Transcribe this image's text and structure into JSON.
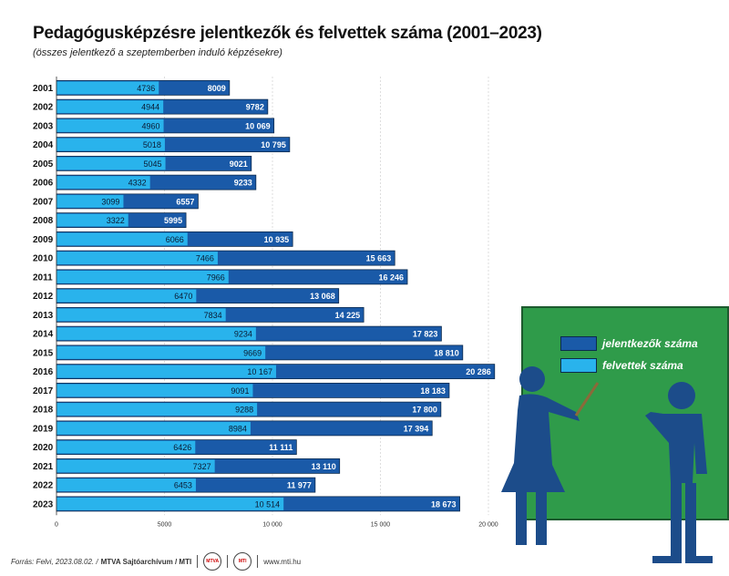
{
  "title": "Pedagógusképzésre jelentkezők és felvettek száma (2001–2023)",
  "subtitle": "(összes jelentkező a szeptemberben induló képzésekre)",
  "colors": {
    "applicants": "#1a5aa8",
    "admitted": "#29b3ec",
    "outline": "#0c2a4d",
    "board": "#2f9b4a"
  },
  "legend": {
    "applicants": "jelentkezők száma",
    "admitted": "felvettek száma"
  },
  "footer": {
    "source": "Forrás: Felvi, 2023.08.02. /",
    "agency": "MTVA Sajtóarchívum / MTI",
    "logo1": "MTVA",
    "logo2": "MTI",
    "web": "www.mti.hu"
  },
  "chart_data": {
    "type": "bar",
    "orientation": "horizontal",
    "categories": [
      "2001",
      "2002",
      "2003",
      "2004",
      "2005",
      "2006",
      "2007",
      "2008",
      "2009",
      "2010",
      "2011",
      "2012",
      "2013",
      "2014",
      "2015",
      "2016",
      "2017",
      "2018",
      "2019",
      "2020",
      "2021",
      "2022",
      "2023"
    ],
    "series": [
      {
        "name": "jelentkezők száma",
        "values": [
          8009,
          9782,
          10069,
          10795,
          9021,
          9233,
          6557,
          5995,
          10935,
          15663,
          16246,
          13068,
          14225,
          17823,
          18810,
          20286,
          18183,
          17800,
          17394,
          11111,
          13110,
          11977,
          18673
        ],
        "labels": [
          "8009",
          "9782",
          "10 069",
          "10 795",
          "9021",
          "9233",
          "6557",
          "5995",
          "10 935",
          "15 663",
          "16 246",
          "13 068",
          "14 225",
          "17 823",
          "18 810",
          "20 286",
          "18 183",
          "17 800",
          "17 394",
          "11 111",
          "13 110",
          "11 977",
          "18 673"
        ]
      },
      {
        "name": "felvettek száma",
        "values": [
          4736,
          4944,
          4960,
          5018,
          5045,
          4332,
          3099,
          3322,
          6066,
          7466,
          7966,
          6470,
          7834,
          9234,
          9669,
          10167,
          9091,
          9288,
          8984,
          6426,
          7327,
          6453,
          10514
        ],
        "labels": [
          "4736",
          "4944",
          "4960",
          "5018",
          "5045",
          "4332",
          "3099",
          "3322",
          "6066",
          "7466",
          "7966",
          "6470",
          "7834",
          "9234",
          "9669",
          "10 167",
          "9091",
          "9288",
          "8984",
          "6426",
          "7327",
          "6453",
          "10 514"
        ]
      }
    ],
    "xlim": [
      0,
      20000
    ],
    "xticks": [
      0,
      5000,
      10000,
      15000,
      20000
    ],
    "xtick_labels": [
      "0",
      "5000",
      "10 000",
      "15 000",
      "20 000"
    ],
    "grid": true
  }
}
